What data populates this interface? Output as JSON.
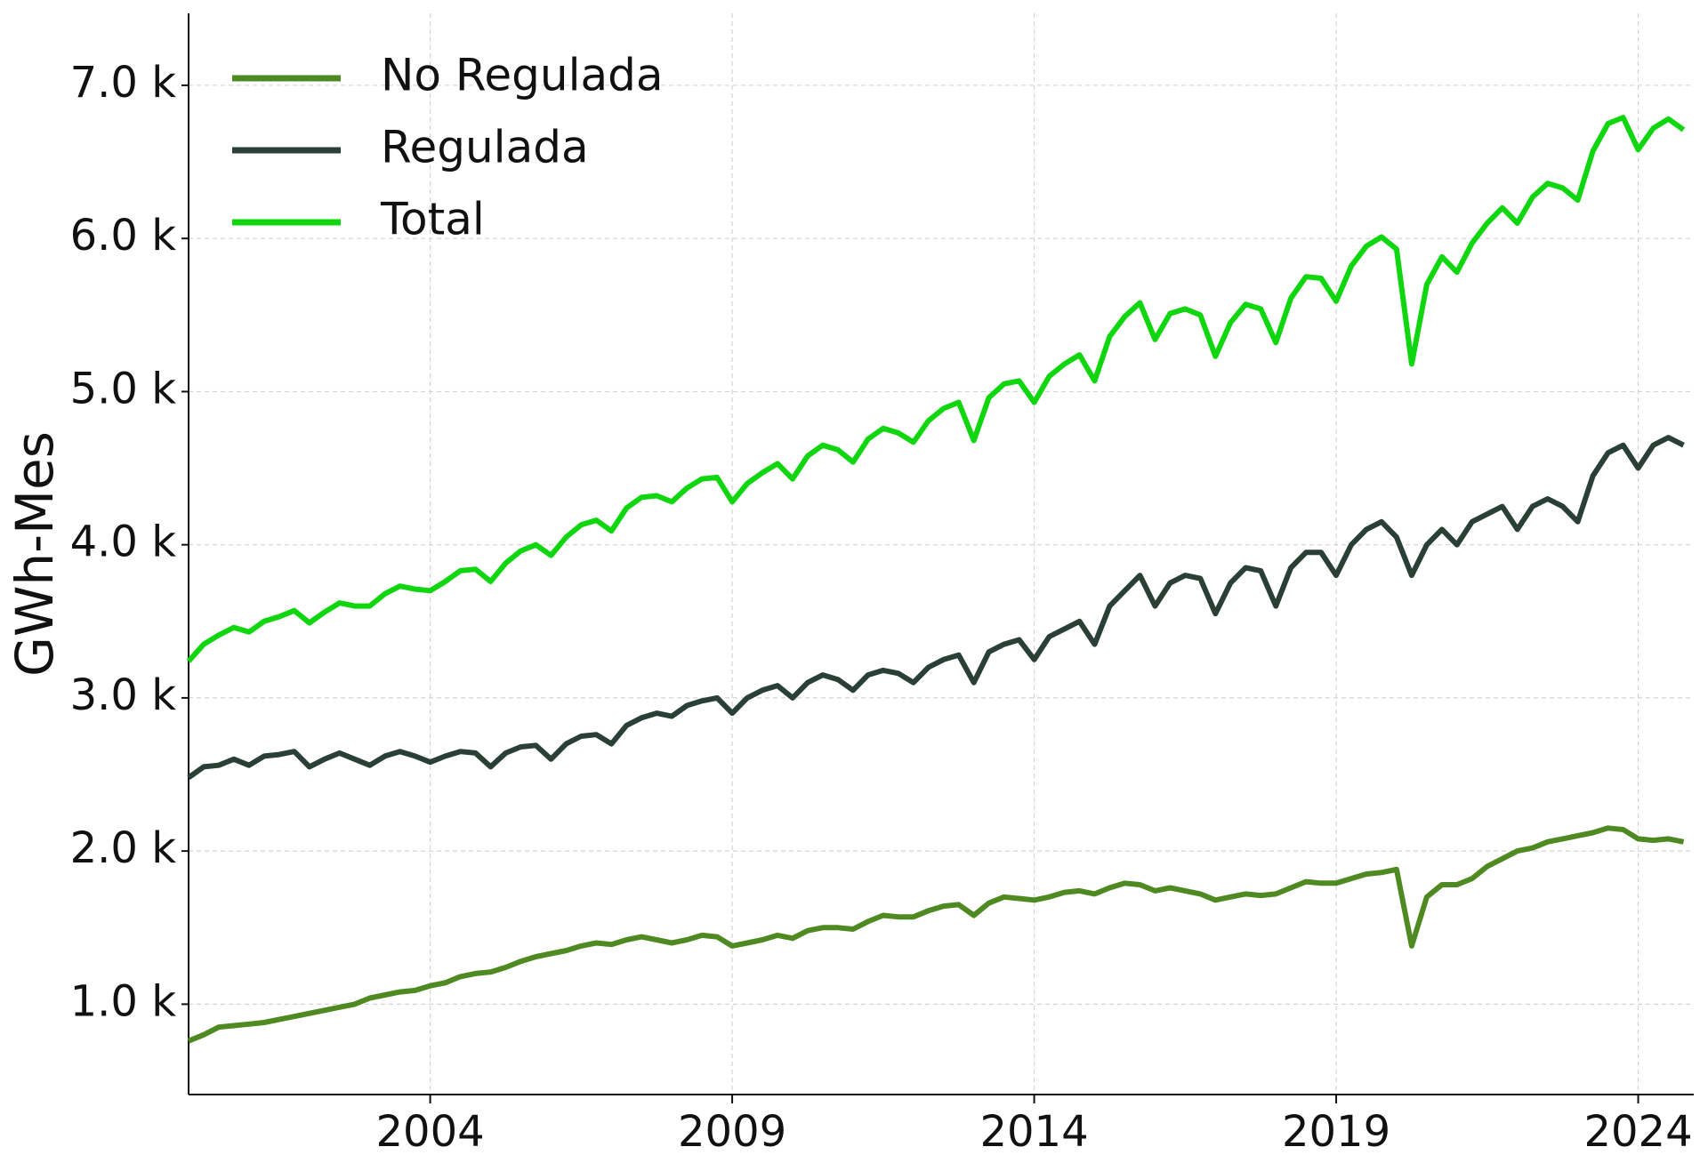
{
  "chart_data": {
    "type": "line",
    "y_label": "GWh-Mes",
    "x": [
      2000,
      2000.25,
      2000.5,
      2000.75,
      2001,
      2001.25,
      2001.5,
      2001.75,
      2002,
      2002.25,
      2002.5,
      2002.75,
      2003,
      2003.25,
      2003.5,
      2003.75,
      2004,
      2004.25,
      2004.5,
      2004.75,
      2005,
      2005.25,
      2005.5,
      2005.75,
      2006,
      2006.25,
      2006.5,
      2006.75,
      2007,
      2007.25,
      2007.5,
      2007.75,
      2008,
      2008.25,
      2008.5,
      2008.75,
      2009,
      2009.25,
      2009.5,
      2009.75,
      2010,
      2010.25,
      2010.5,
      2010.75,
      2011,
      2011.25,
      2011.5,
      2011.75,
      2012,
      2012.25,
      2012.5,
      2012.75,
      2013,
      2013.25,
      2013.5,
      2013.75,
      2014,
      2014.25,
      2014.5,
      2014.75,
      2015,
      2015.25,
      2015.5,
      2015.75,
      2016,
      2016.25,
      2016.5,
      2016.75,
      2017,
      2017.25,
      2017.5,
      2017.75,
      2018,
      2018.25,
      2018.5,
      2018.75,
      2019,
      2019.25,
      2019.5,
      2019.75,
      2020,
      2020.25,
      2020.5,
      2020.75,
      2021,
      2021.25,
      2021.5,
      2021.75,
      2022,
      2022.25,
      2022.5,
      2022.75,
      2023,
      2023.25,
      2023.5,
      2023.75,
      2024,
      2024.25,
      2024.5,
      2024.75
    ],
    "series": [
      {
        "name": "No Regulada",
        "color": "#4e8a21",
        "values": [
          760,
          800,
          850,
          860,
          870,
          880,
          900,
          920,
          940,
          960,
          980,
          1000,
          1040,
          1060,
          1080,
          1090,
          1120,
          1140,
          1180,
          1200,
          1210,
          1240,
          1280,
          1310,
          1330,
          1350,
          1380,
          1400,
          1390,
          1420,
          1440,
          1420,
          1400,
          1420,
          1450,
          1440,
          1380,
          1400,
          1420,
          1450,
          1430,
          1480,
          1500,
          1500,
          1490,
          1540,
          1580,
          1570,
          1570,
          1610,
          1640,
          1650,
          1580,
          1660,
          1700,
          1690,
          1680,
          1700,
          1730,
          1740,
          1720,
          1760,
          1790,
          1780,
          1740,
          1760,
          1740,
          1720,
          1680,
          1700,
          1720,
          1710,
          1720,
          1760,
          1800,
          1790,
          1790,
          1820,
          1850,
          1860,
          1880,
          1380,
          1700,
          1780,
          1780,
          1820,
          1900,
          1950,
          2000,
          2020,
          2060,
          2080,
          2100,
          2120,
          2150,
          2140,
          2080,
          2070,
          2080,
          2060
        ]
      },
      {
        "name": "Regulada",
        "color": "#2a3f35",
        "values": [
          2480,
          2550,
          2560,
          2600,
          2560,
          2620,
          2630,
          2650,
          2550,
          2600,
          2640,
          2600,
          2560,
          2620,
          2650,
          2620,
          2580,
          2620,
          2650,
          2640,
          2550,
          2640,
          2680,
          2690,
          2600,
          2700,
          2750,
          2760,
          2700,
          2820,
          2870,
          2900,
          2880,
          2950,
          2980,
          3000,
          2900,
          3000,
          3050,
          3080,
          3000,
          3100,
          3150,
          3120,
          3050,
          3150,
          3180,
          3160,
          3100,
          3200,
          3250,
          3280,
          3100,
          3300,
          3350,
          3380,
          3250,
          3400,
          3450,
          3500,
          3350,
          3600,
          3700,
          3800,
          3600,
          3750,
          3800,
          3780,
          3550,
          3750,
          3850,
          3830,
          3600,
          3850,
          3950,
          3950,
          3800,
          4000,
          4100,
          4150,
          4050,
          3800,
          4000,
          4100,
          4000,
          4150,
          4200,
          4250,
          4100,
          4250,
          4300,
          4250,
          4150,
          4450,
          4600,
          4650,
          4500,
          4650,
          4700,
          4650
        ]
      },
      {
        "name": "Total",
        "color": "#0fd60f",
        "values": [
          3240,
          3350,
          3410,
          3460,
          3430,
          3500,
          3530,
          3570,
          3490,
          3560,
          3620,
          3600,
          3600,
          3680,
          3730,
          3710,
          3700,
          3760,
          3830,
          3840,
          3760,
          3880,
          3960,
          4000,
          3930,
          4050,
          4130,
          4160,
          4090,
          4240,
          4310,
          4320,
          4280,
          4370,
          4430,
          4440,
          4280,
          4400,
          4470,
          4530,
          4430,
          4580,
          4650,
          4620,
          4540,
          4690,
          4760,
          4730,
          4670,
          4810,
          4890,
          4930,
          4680,
          4960,
          5050,
          5070,
          4930,
          5100,
          5180,
          5240,
          5070,
          5360,
          5490,
          5580,
          5340,
          5510,
          5540,
          5500,
          5230,
          5450,
          5570,
          5540,
          5320,
          5610,
          5750,
          5740,
          5590,
          5820,
          5950,
          6010,
          5930,
          5180,
          5700,
          5880,
          5780,
          5970,
          6100,
          6200,
          6100,
          6270,
          6360,
          6330,
          6250,
          6570,
          6750,
          6790,
          6580,
          6720,
          6780,
          6710
        ]
      }
    ],
    "xlim": [
      2000,
      2024.92
    ],
    "xticks": [
      2004,
      2009,
      2014,
      2019,
      2024
    ],
    "ylim": [
      410,
      7470
    ],
    "yticks": [
      {
        "value": 1000,
        "label": "1.0 k"
      },
      {
        "value": 2000,
        "label": "2.0 k"
      },
      {
        "value": 3000,
        "label": "3.0 k"
      },
      {
        "value": 4000,
        "label": "4.0 k"
      },
      {
        "value": 5000,
        "label": "5.0 k"
      },
      {
        "value": 6000,
        "label": "6.0 k"
      },
      {
        "value": 7000,
        "label": "7.0 k"
      }
    ],
    "grid": true,
    "legend": "upper-left"
  }
}
